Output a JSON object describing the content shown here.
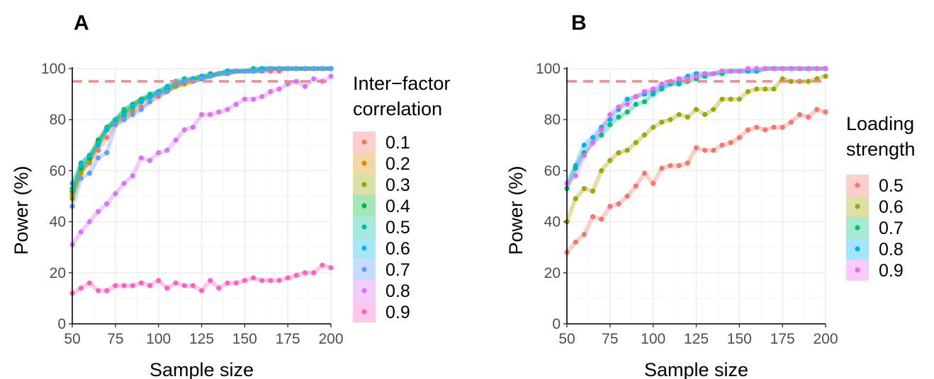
{
  "chart_data": [
    {
      "panel_label": "A",
      "type": "line",
      "xlabel": "Sample size",
      "ylabel": "Power (%)",
      "xlim": [
        50,
        200
      ],
      "ylim": [
        0,
        100
      ],
      "xticks": [
        50,
        75,
        100,
        125,
        150,
        175,
        200
      ],
      "yticks": [
        0,
        20,
        40,
        60,
        80,
        100
      ],
      "reference_line": {
        "y": 95,
        "style": "dashed",
        "color": "#F08080"
      },
      "grid": true,
      "legend": {
        "title_lines": [
          "Inter−factor",
          "correlation"
        ],
        "placement": "right"
      },
      "x": [
        50,
        55,
        60,
        65,
        70,
        75,
        80,
        85,
        90,
        95,
        100,
        105,
        110,
        115,
        120,
        125,
        130,
        135,
        140,
        145,
        150,
        155,
        160,
        165,
        170,
        175,
        180,
        185,
        190,
        195,
        200
      ],
      "series": [
        {
          "name": "0.1",
          "color": "#F8766D",
          "values": [
            51,
            60,
            63,
            68,
            73,
            78,
            80,
            83,
            85,
            87,
            89,
            91,
            93,
            94,
            95,
            96,
            97,
            98,
            98,
            99,
            99,
            99,
            99,
            99,
            99,
            100,
            100,
            100,
            100,
            100,
            100
          ]
        },
        {
          "name": "0.2",
          "color": "#D39200",
          "values": [
            50,
            59,
            64,
            70,
            76,
            79,
            81,
            84,
            87,
            89,
            90,
            91,
            93,
            94,
            95,
            96,
            97,
            98,
            98,
            99,
            99,
            99,
            99,
            100,
            100,
            100,
            100,
            100,
            100,
            100,
            100
          ]
        },
        {
          "name": "0.3",
          "color": "#93AA00",
          "values": [
            49,
            60,
            64,
            70,
            77,
            79,
            82,
            85,
            88,
            89,
            90,
            92,
            93,
            95,
            96,
            96,
            97,
            98,
            98,
            99,
            99,
            99,
            100,
            100,
            100,
            100,
            100,
            100,
            100,
            100,
            100
          ]
        },
        {
          "name": "0.4",
          "color": "#00BA38",
          "values": [
            52,
            61,
            65,
            72,
            76,
            80,
            83,
            86,
            88,
            89,
            91,
            92,
            94,
            95,
            96,
            97,
            97,
            98,
            99,
            99,
            99,
            99,
            100,
            100,
            100,
            100,
            100,
            100,
            100,
            100,
            100
          ]
        },
        {
          "name": "0.5",
          "color": "#00C19F",
          "values": [
            53,
            63,
            66,
            71,
            77,
            80,
            84,
            86,
            88,
            90,
            91,
            93,
            95,
            96,
            96,
            97,
            98,
            98,
            99,
            99,
            99,
            100,
            100,
            100,
            100,
            100,
            100,
            100,
            100,
            100,
            100
          ]
        },
        {
          "name": "0.6",
          "color": "#00B9E3",
          "values": [
            55,
            62,
            66,
            70,
            76,
            80,
            82,
            85,
            87,
            89,
            91,
            93,
            94,
            95,
            96,
            97,
            97,
            98,
            99,
            99,
            99,
            99,
            100,
            100,
            100,
            100,
            100,
            100,
            100,
            100,
            100
          ]
        },
        {
          "name": "0.7",
          "color": "#619CFF",
          "values": [
            46,
            57,
            59,
            65,
            67,
            78,
            80,
            82,
            84,
            87,
            90,
            91,
            94,
            95,
            95,
            96,
            97,
            98,
            98,
            99,
            99,
            99,
            99,
            100,
            100,
            100,
            100,
            100,
            100,
            100,
            100
          ]
        },
        {
          "name": "0.8",
          "color": "#DB72FB",
          "values": [
            31,
            36,
            40,
            44,
            47,
            51,
            55,
            58,
            65,
            64,
            67,
            68,
            72,
            76,
            77,
            82,
            82,
            83,
            84,
            86,
            88,
            88,
            89,
            91,
            92,
            94,
            95,
            93,
            96,
            95,
            97
          ]
        },
        {
          "name": "0.9",
          "color": "#FF61C3",
          "values": [
            12,
            14,
            16,
            13,
            13,
            15,
            15,
            15,
            16,
            15,
            17,
            14,
            16,
            15,
            15,
            13,
            17,
            14,
            16,
            16,
            17,
            18,
            17,
            17,
            17,
            18,
            19,
            20,
            20,
            23,
            22
          ]
        }
      ]
    },
    {
      "panel_label": "B",
      "type": "line",
      "xlabel": "Sample size",
      "ylabel": "Power (%)",
      "xlim": [
        50,
        200
      ],
      "ylim": [
        0,
        100
      ],
      "xticks": [
        50,
        75,
        100,
        125,
        150,
        175,
        200
      ],
      "yticks": [
        0,
        20,
        40,
        60,
        80,
        100
      ],
      "reference_line": {
        "y": 95,
        "style": "dashed",
        "color": "#F08080"
      },
      "grid": true,
      "legend": {
        "title_lines": [
          "Loading",
          "strength"
        ],
        "placement": "right"
      },
      "x": [
        50,
        55,
        60,
        65,
        70,
        75,
        80,
        85,
        90,
        95,
        100,
        105,
        110,
        115,
        120,
        125,
        130,
        135,
        140,
        145,
        150,
        155,
        160,
        165,
        170,
        175,
        180,
        185,
        190,
        195,
        200
      ],
      "series": [
        {
          "name": "0.5",
          "color": "#F8766D",
          "values": [
            28,
            32,
            35,
            42,
            41,
            46,
            47,
            50,
            54,
            59,
            55,
            61,
            62,
            62,
            63,
            69,
            68,
            68,
            70,
            71,
            73,
            76,
            77,
            76,
            77,
            77,
            79,
            82,
            81,
            84,
            83
          ]
        },
        {
          "name": "0.6",
          "color": "#A3A500",
          "values": [
            40,
            49,
            53,
            52,
            60,
            64,
            67,
            68,
            71,
            74,
            77,
            79,
            80,
            82,
            81,
            84,
            82,
            84,
            88,
            88,
            88,
            91,
            92,
            92,
            92,
            96,
            95,
            95,
            95,
            96,
            97
          ]
        },
        {
          "name": "0.7",
          "color": "#00BF7D",
          "values": [
            53,
            61,
            67,
            71,
            74,
            78,
            81,
            83,
            86,
            87,
            90,
            92,
            94,
            94,
            95,
            96,
            97,
            98,
            98,
            99,
            99,
            99,
            99,
            100,
            100,
            100,
            100,
            100,
            100,
            100,
            100
          ]
        },
        {
          "name": "0.8",
          "color": "#00B0F6",
          "values": [
            55,
            62,
            70,
            73,
            77,
            80,
            84,
            88,
            89,
            90,
            91,
            93,
            94,
            95,
            97,
            98,
            98,
            98,
            99,
            99,
            99,
            99,
            99,
            100,
            100,
            100,
            100,
            100,
            100,
            100,
            100
          ]
        },
        {
          "name": "0.9",
          "color": "#E76BF3",
          "values": [
            55,
            58,
            66,
            71,
            76,
            82,
            85,
            86,
            89,
            91,
            92,
            94,
            95,
            96,
            96,
            97,
            98,
            98,
            99,
            99,
            99,
            100,
            100,
            100,
            100,
            100,
            100,
            100,
            100,
            100,
            100
          ]
        }
      ]
    }
  ]
}
